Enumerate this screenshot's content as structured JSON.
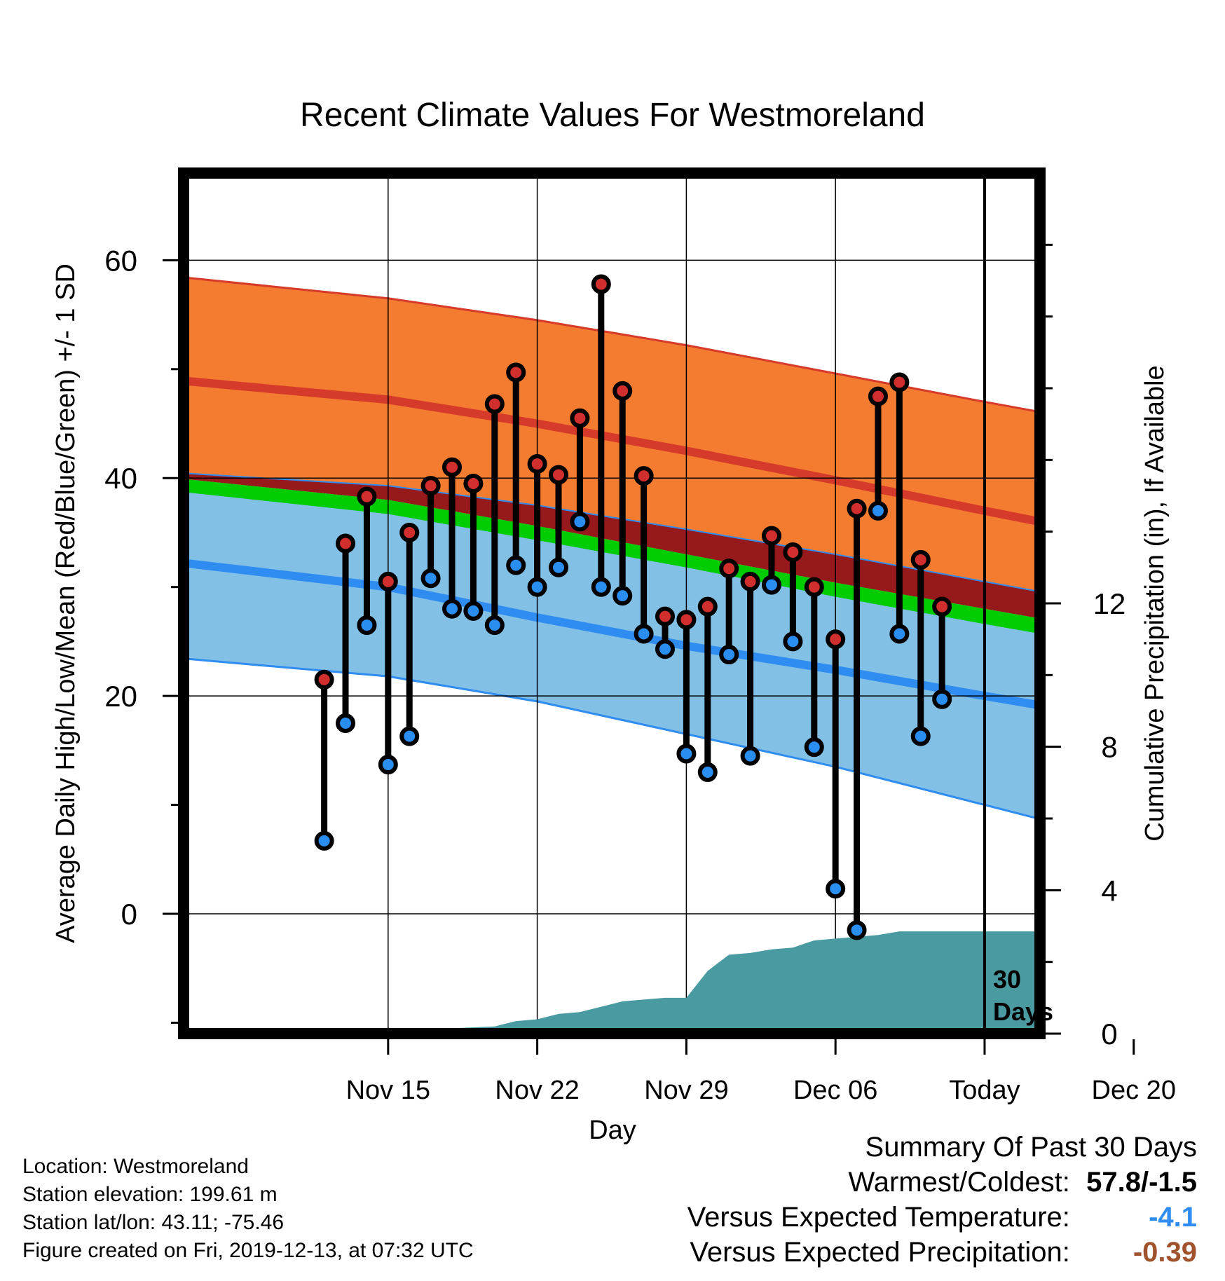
{
  "chart_data": {
    "type": "line",
    "title": "Recent Climate Values For Westmoreland",
    "xlabel": "Day",
    "ylabel": "Average Daily High/Low/Mean (Red/Blue/Green) +/- 1 SD",
    "y2label": "Cumulative Precipitation (in), If Available",
    "x_range_days": [
      -6.6,
      33.6
    ],
    "ylim": [
      -11,
      68
    ],
    "y2lim": [
      0,
      24
    ],
    "xticks": [
      {
        "day": 3,
        "label": "Nov 15"
      },
      {
        "day": 10,
        "label": "Nov 22"
      },
      {
        "day": 17,
        "label": "Nov 29"
      },
      {
        "day": 24,
        "label": "Dec 06"
      },
      {
        "day": 31,
        "label": "Today"
      },
      {
        "day": 38,
        "label": "Dec 20"
      }
    ],
    "yticks": [
      0,
      20,
      40,
      60
    ],
    "y2ticks": [
      0,
      4,
      8,
      12
    ],
    "today_day": 31,
    "today_label": [
      "30",
      "Days"
    ],
    "normals": {
      "days": [
        -7,
        3,
        10,
        17,
        24,
        31,
        38,
        40
      ],
      "high_mean": [
        49.0,
        47.2,
        45.0,
        42.5,
        39.8,
        37.0,
        34.3,
        33.5
      ],
      "high_upper": [
        58.5,
        56.5,
        54.5,
        52.2,
        49.6,
        47.0,
        44.5,
        43.7
      ],
      "high_lower": [
        40.5,
        39.3,
        37.5,
        35.3,
        33.0,
        30.5,
        28.0,
        27.3
      ],
      "low_mean": [
        32.3,
        30.0,
        27.2,
        24.6,
        22.4,
        20.0,
        17.7,
        17.0
      ],
      "low_upper": [
        40.0,
        38.0,
        35.6,
        33.0,
        30.4,
        28.0,
        25.6,
        24.8
      ],
      "low_lower": [
        23.5,
        21.8,
        19.5,
        16.5,
        13.5,
        10.0,
        6.5,
        5.5
      ],
      "mean_upper": [
        40.0,
        38.0,
        35.6,
        33.0,
        30.4,
        28.0,
        25.6,
        24.8
      ],
      "mean_lower": [
        38.8,
        36.7,
        34.3,
        31.8,
        29.1,
        26.6,
        24.2,
        23.3
      ]
    },
    "observations": {
      "days": [
        0,
        1,
        2,
        3,
        4,
        5,
        6,
        7,
        8,
        9,
        10,
        11,
        12,
        13,
        14,
        15,
        16,
        17,
        18,
        19,
        20,
        21,
        22,
        23,
        24,
        25,
        26,
        27,
        28,
        29,
        30
      ],
      "highs": [
        21.5,
        34.0,
        38.3,
        30.5,
        35.0,
        39.3,
        41.0,
        39.5,
        46.8,
        49.7,
        41.3,
        40.3,
        45.5,
        57.8,
        48.0,
        40.2,
        27.3,
        27.0,
        28.2,
        31.7,
        30.5,
        34.7,
        33.2,
        30.0,
        25.2,
        37.2,
        47.5,
        48.8,
        32.5,
        28.2,
        null
      ],
      "lows": [
        6.7,
        17.5,
        26.5,
        13.7,
        16.3,
        30.8,
        28.0,
        27.8,
        26.5,
        32.0,
        30.0,
        31.8,
        36.0,
        30.0,
        29.2,
        25.7,
        24.3,
        14.7,
        13.0,
        23.8,
        14.5,
        30.2,
        25.0,
        15.3,
        2.3,
        -1.5,
        37.0,
        25.7,
        16.3,
        19.7,
        null
      ]
    },
    "precipitation": {
      "days": [
        -7,
        5,
        6,
        8,
        9,
        10,
        11,
        12,
        13,
        14,
        15,
        16,
        17,
        18,
        19,
        20,
        21,
        22,
        23,
        24,
        25,
        26,
        27,
        28,
        29,
        30,
        31,
        33.6
      ],
      "cumulative": [
        0,
        0,
        0.15,
        0.2,
        0.35,
        0.4,
        0.55,
        0.6,
        0.75,
        0.9,
        0.95,
        1.0,
        1.0,
        1.75,
        2.2,
        2.25,
        2.35,
        2.4,
        2.6,
        2.65,
        2.7,
        2.75,
        2.85,
        2.85,
        2.85,
        2.85,
        2.85,
        2.85
      ]
    },
    "colors": {
      "high_band": "#f47c30",
      "high_line": "#d63a2a",
      "overlap_band": "#96191c",
      "mean_band": "#00cc00",
      "low_band": "#82c0e6",
      "low_line": "#2f8cf0",
      "precip_fill": "#4a9aa1",
      "high_marker": "#d12e2e",
      "low_marker": "#2a8ef0"
    },
    "grid": true,
    "legend": "none"
  },
  "footer": {
    "location": "Location: Westmoreland",
    "elevation": "Station elevation: 199.61 m",
    "latlon": "Station lat/lon: 43.11; -75.46",
    "created": "Figure created on Fri, 2019-12-13, at 07:32 UTC"
  },
  "summary": {
    "heading": "Summary Of Past 30 Days",
    "warm_cold_label": "Warmest/Coldest:",
    "warm_cold_value": "57.8/-1.5",
    "temp_label": "Versus Expected Temperature:",
    "temp_value": "-4.1",
    "temp_color": "#2f8cf0",
    "precip_label": "Versus Expected Precipitation:",
    "precip_value": "-0.39",
    "precip_color": "#a0522d"
  }
}
